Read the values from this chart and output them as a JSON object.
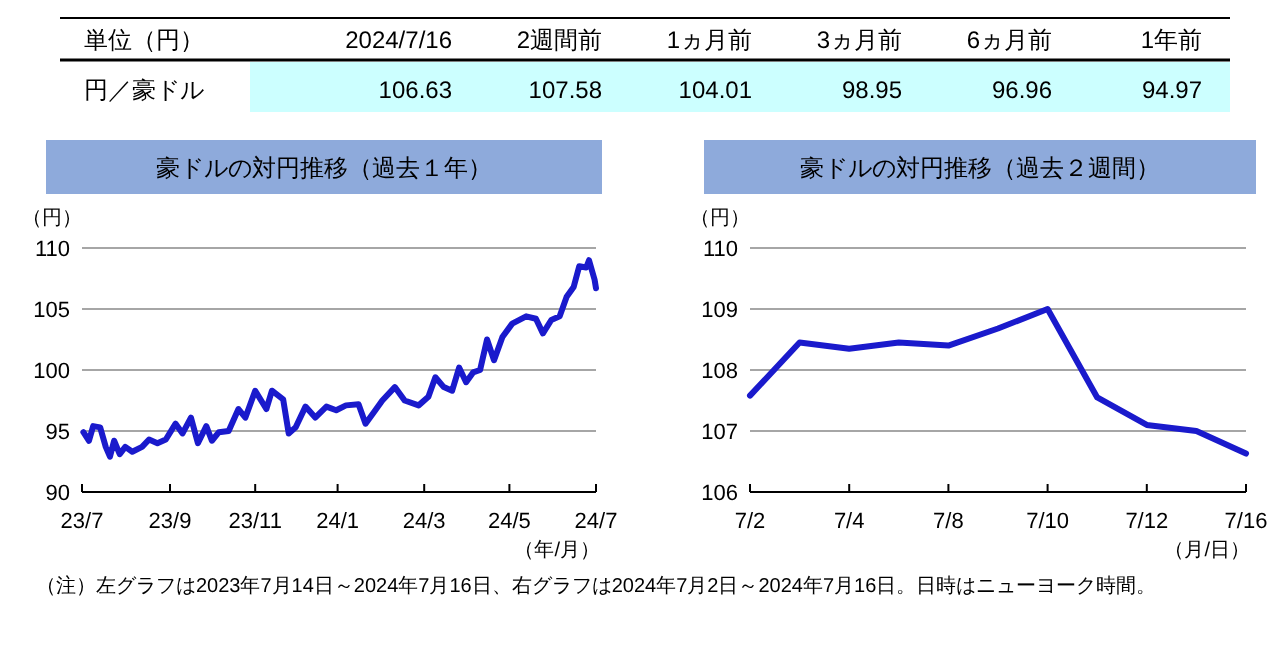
{
  "chart_data": [
    {
      "type": "other",
      "categories": [
        "2024/7/16",
        "2週間前",
        "1ヵ月前",
        "3ヵ月前",
        "6ヵ月前",
        "1年前"
      ],
      "values": [
        106.63,
        107.58,
        104.01,
        98.95,
        96.96,
        94.97
      ],
      "data_labels": true,
      "annotations": [
        "単位（円）",
        "円／豪ドル"
      ],
      "color": "#ccffff"
    },
    {
      "type": "line",
      "title": "豪ドルの対円推移（過去１年）",
      "ylabel": "（円）",
      "xlabel": "（年/月）",
      "color": "#1a1acc",
      "grid": "y",
      "ylim": [
        90,
        110
      ],
      "yticks": [
        90,
        95,
        100,
        105,
        110
      ],
      "xlim": [
        "2023-07-14",
        "2024-07-16"
      ],
      "xticks": [
        {
          "value": "2023-07-14",
          "label": "23/7"
        },
        {
          "value": "2023-09-15",
          "label": "23/9"
        },
        {
          "value": "2023-11-15",
          "label": "23/11"
        },
        {
          "value": "2024-01-13",
          "label": "24/1"
        },
        {
          "value": "2024-03-15",
          "label": "24/3"
        },
        {
          "value": "2024-05-15",
          "label": "24/5"
        },
        {
          "value": "2024-07-16",
          "label": "24/7"
        }
      ],
      "x": [
        "2023-07-15",
        "2023-07-19",
        "2023-07-22",
        "2023-07-27",
        "2023-07-31",
        "2023-08-03",
        "2023-08-06",
        "2023-08-10",
        "2023-08-14",
        "2023-08-19",
        "2023-08-26",
        "2023-08-31",
        "2023-09-06",
        "2023-09-12",
        "2023-09-19",
        "2023-09-24",
        "2023-09-30",
        "2023-10-05",
        "2023-10-11",
        "2023-10-15",
        "2023-10-20",
        "2023-10-27",
        "2023-11-03",
        "2023-11-08",
        "2023-11-15",
        "2023-11-23",
        "2023-11-27",
        "2023-12-05",
        "2023-12-09",
        "2023-12-14",
        "2023-12-21",
        "2023-12-28",
        "2024-01-05",
        "2024-01-12",
        "2024-01-19",
        "2024-01-28",
        "2024-02-02",
        "2024-02-09",
        "2024-02-14",
        "2024-02-23",
        "2024-03-01",
        "2024-03-11",
        "2024-03-18",
        "2024-03-23",
        "2024-03-29",
        "2024-04-04",
        "2024-04-09",
        "2024-04-14",
        "2024-04-19",
        "2024-04-24",
        "2024-04-29",
        "2024-05-04",
        "2024-05-10",
        "2024-05-17",
        "2024-05-27",
        "2024-06-03",
        "2024-06-08",
        "2024-06-14",
        "2024-06-20",
        "2024-06-25",
        "2024-06-30",
        "2024-07-04",
        "2024-07-09",
        "2024-07-11",
        "2024-07-15",
        "2024-07-16"
      ],
      "values": [
        94.9,
        94.2,
        95.4,
        95.3,
        93.7,
        92.9,
        94.2,
        93.1,
        93.7,
        93.3,
        93.7,
        94.3,
        94.0,
        94.3,
        95.6,
        94.8,
        96.1,
        94.0,
        95.4,
        94.2,
        94.9,
        95.0,
        96.8,
        96.1,
        98.3,
        96.8,
        98.3,
        97.6,
        94.8,
        95.3,
        97.0,
        96.1,
        97.0,
        96.7,
        97.1,
        97.2,
        95.6,
        96.7,
        97.5,
        98.6,
        97.5,
        97.1,
        97.8,
        99.4,
        98.6,
        98.3,
        100.2,
        99.0,
        99.8,
        100.0,
        102.5,
        100.8,
        102.7,
        103.8,
        104.4,
        104.2,
        103.0,
        104.1,
        104.4,
        106.0,
        106.8,
        108.5,
        108.4,
        109.0,
        107.4,
        106.7
      ]
    },
    {
      "type": "line",
      "title": "豪ドルの対円推移（過去２週間）",
      "ylabel": "（円）",
      "xlabel": "（月/日）",
      "color": "#1a1acc",
      "grid": "y",
      "ylim": [
        106,
        110
      ],
      "yticks": [
        106,
        107,
        108,
        109,
        110
      ],
      "categories": [
        "7/2",
        null,
        "7/4",
        null,
        "7/8",
        null,
        "7/10",
        null,
        "7/12",
        null,
        "7/16"
      ],
      "values": [
        107.58,
        108.45,
        108.35,
        108.45,
        108.4,
        108.68,
        109.0,
        107.55,
        107.1,
        107.0,
        106.63
      ],
      "annotations": [
        "（注）左グラフは2023年7月14日～2024年7月16日、右グラフは2024年7月2日～2024年7月16日。日時はニューヨーク時間。"
      ]
    }
  ]
}
